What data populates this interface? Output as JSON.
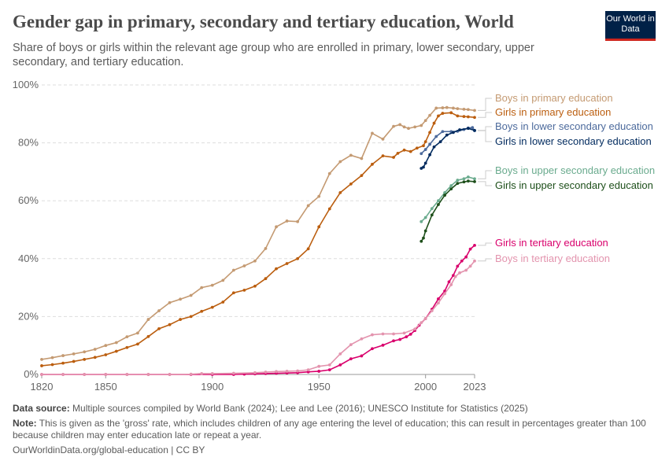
{
  "header": {
    "title": "Gender gap in primary, secondary and tertiary education, World",
    "subtitle": "Share of boys or girls within the relevant age group who are enrolled in primary, lower secondary, upper secondary, and tertiary education.",
    "logo": "Our World in Data"
  },
  "footer": {
    "source_label": "Data source:",
    "source": "Multiple sources compiled by World Bank (2024); Lee and Lee (2016); UNESCO Institute for Statistics (2025)",
    "note_label": "Note:",
    "note": "This is given as the 'gross' rate, which includes children of any age entering the level of education; this can result in percentages greater than 100 because children may enter education late or repeat a year.",
    "url": "OurWorldinData.org/global-education | CC BY"
  },
  "chart_data": {
    "type": "line",
    "xlim": [
      1820,
      2023
    ],
    "ylim": [
      0,
      100
    ],
    "x_ticks": [
      1820,
      1850,
      1900,
      1950,
      2000,
      2023
    ],
    "x_tick_labels": [
      "1820",
      "1850",
      "1900",
      "1950",
      "2000",
      "2023"
    ],
    "y_ticks": [
      0,
      20,
      40,
      60,
      80,
      100
    ],
    "y_tick_labels": [
      "0%",
      "20%",
      "40%",
      "60%",
      "80%",
      "100%"
    ],
    "grid": "horizontal dashed",
    "legend": "right, end-of-line labels",
    "series": [
      {
        "name": "Boys in primary education",
        "color": "#c49a72",
        "x": [
          1820,
          1825,
          1830,
          1835,
          1840,
          1845,
          1850,
          1855,
          1860,
          1865,
          1870,
          1875,
          1880,
          1885,
          1890,
          1895,
          1900,
          1905,
          1910,
          1915,
          1920,
          1925,
          1930,
          1935,
          1940,
          1945,
          1950,
          1955,
          1960,
          1965,
          1970,
          1975,
          1980,
          1985,
          1988,
          1990,
          1992,
          1995,
          1998,
          2000,
          2002,
          2005,
          2008,
          2010,
          2013,
          2015,
          2018,
          2020,
          2023
        ],
        "y": [
          5.2,
          5.8,
          6.5,
          7.1,
          7.8,
          8.7,
          10,
          11,
          13,
          14.3,
          19,
          22,
          24.8,
          26,
          27.3,
          30,
          30.8,
          32.5,
          36,
          37.5,
          39.2,
          43.5,
          51,
          53,
          52.8,
          58.3,
          61.5,
          69.4,
          73.5,
          75.7,
          74.6,
          83.3,
          81.3,
          85.7,
          86.3,
          85.5,
          85,
          85.5,
          86,
          87.7,
          89.5,
          92,
          92.1,
          92.2,
          92,
          91.8,
          91.6,
          91.5,
          91.2
        ]
      },
      {
        "name": "Girls in primary education",
        "color": "#bb5e0f",
        "x": [
          1820,
          1825,
          1830,
          1835,
          1840,
          1845,
          1850,
          1855,
          1860,
          1865,
          1870,
          1875,
          1880,
          1885,
          1890,
          1895,
          1900,
          1905,
          1910,
          1915,
          1920,
          1925,
          1930,
          1935,
          1940,
          1945,
          1950,
          1955,
          1960,
          1965,
          1970,
          1975,
          1980,
          1985,
          1987,
          1990,
          1993,
          1996,
          1999,
          2000,
          2002,
          2004,
          2006,
          2008,
          2012,
          2015,
          2018,
          2020,
          2023
        ],
        "y": [
          3.0,
          3.4,
          3.9,
          4.5,
          5.2,
          5.9,
          6.8,
          8,
          9.3,
          10.5,
          13.1,
          15.8,
          17.2,
          19,
          20,
          21.8,
          23.2,
          25,
          28.2,
          29.1,
          30.5,
          33.1,
          36.5,
          38.3,
          40,
          43.4,
          51,
          57.2,
          62.8,
          65.8,
          68.7,
          72.6,
          75.5,
          75,
          76.4,
          77.5,
          77,
          78.2,
          79,
          80.4,
          83.6,
          86.8,
          89.3,
          90.2,
          90.4,
          89.3,
          89.1,
          89,
          88.8
        ]
      },
      {
        "name": "Boys in lower secondary education",
        "color": "#4c6a9c",
        "x": [
          1998,
          2000,
          2002,
          2005,
          2008,
          2012,
          2015,
          2018,
          2020,
          2022,
          2023
        ],
        "y": [
          76.3,
          77.7,
          79.5,
          82.2,
          83.9,
          83.9,
          84,
          84.6,
          85.1,
          85.3,
          84.2
        ]
      },
      {
        "name": "Girls in lower secondary education",
        "color": "#002a5e",
        "x": [
          1998,
          1999,
          2000,
          2002,
          2004,
          2007,
          2010,
          2013,
          2016,
          2020,
          2023
        ],
        "y": [
          71.2,
          71.6,
          73,
          75.9,
          78.6,
          80.4,
          82.7,
          83.6,
          84.5,
          85,
          84.3
        ]
      },
      {
        "name": "Boys in upper secondary education",
        "color": "#6aab8e",
        "x": [
          1998,
          2000,
          2003,
          2006,
          2009,
          2012,
          2015,
          2018,
          2020,
          2023
        ],
        "y": [
          52.8,
          54.2,
          57.3,
          60,
          62.8,
          65.2,
          67.1,
          67.6,
          68.2,
          67.6
        ]
      },
      {
        "name": "Girls in upper secondary education",
        "color": "#1d4f1a",
        "x": [
          1998,
          1999,
          2000,
          2003,
          2006,
          2009,
          2012,
          2015,
          2018,
          2020,
          2023
        ],
        "y": [
          46,
          47.1,
          49.6,
          55.1,
          58.7,
          61.9,
          64.1,
          66,
          66.5,
          66.8,
          66.6
        ]
      },
      {
        "name": "Girls in tertiary education",
        "color": "#d9006c",
        "x": [
          1820,
          1830,
          1840,
          1850,
          1860,
          1870,
          1880,
          1890,
          1900,
          1910,
          1915,
          1920,
          1925,
          1930,
          1935,
          1940,
          1945,
          1950,
          1955,
          1960,
          1965,
          1970,
          1975,
          1980,
          1985,
          1988,
          1991,
          1993,
          1995,
          1997,
          2000,
          2003,
          2006,
          2009,
          2011,
          2013,
          2015,
          2017,
          2019,
          2021,
          2023
        ],
        "y": [
          0,
          0,
          0,
          0,
          0,
          0,
          0,
          0,
          0,
          0,
          0.1,
          0.2,
          0.3,
          0.4,
          0.5,
          0.6,
          0.9,
          1.1,
          1.6,
          3.3,
          5.4,
          6.4,
          8.9,
          10.1,
          11.6,
          12.1,
          13,
          13.9,
          15.2,
          17,
          19.3,
          22.5,
          26.1,
          28.8,
          32,
          34.2,
          37.4,
          39.2,
          40.6,
          43.3,
          44.6
        ]
      },
      {
        "name": "Boys in tertiary education",
        "color": "#e394ae",
        "x": [
          1820,
          1830,
          1840,
          1850,
          1860,
          1870,
          1880,
          1890,
          1895,
          1900,
          1910,
          1920,
          1925,
          1930,
          1935,
          1940,
          1945,
          1950,
          1955,
          1960,
          1965,
          1970,
          1975,
          1980,
          1985,
          1990,
          1995,
          1998,
          2000,
          2003,
          2006,
          2009,
          2012,
          2014,
          2016,
          2019,
          2021,
          2023
        ],
        "y": [
          0,
          0,
          0,
          0,
          0,
          0,
          0,
          0.1,
          0.3,
          0.3,
          0.4,
          0.6,
          0.8,
          1.0,
          1.1,
          1.2,
          1.6,
          2.8,
          3.3,
          7.1,
          10.3,
          12.3,
          13.7,
          14,
          14,
          14.3,
          15.7,
          17.9,
          19.3,
          22,
          24.7,
          27.9,
          31,
          33.8,
          35.1,
          36,
          37.4,
          39.2
        ]
      }
    ]
  }
}
